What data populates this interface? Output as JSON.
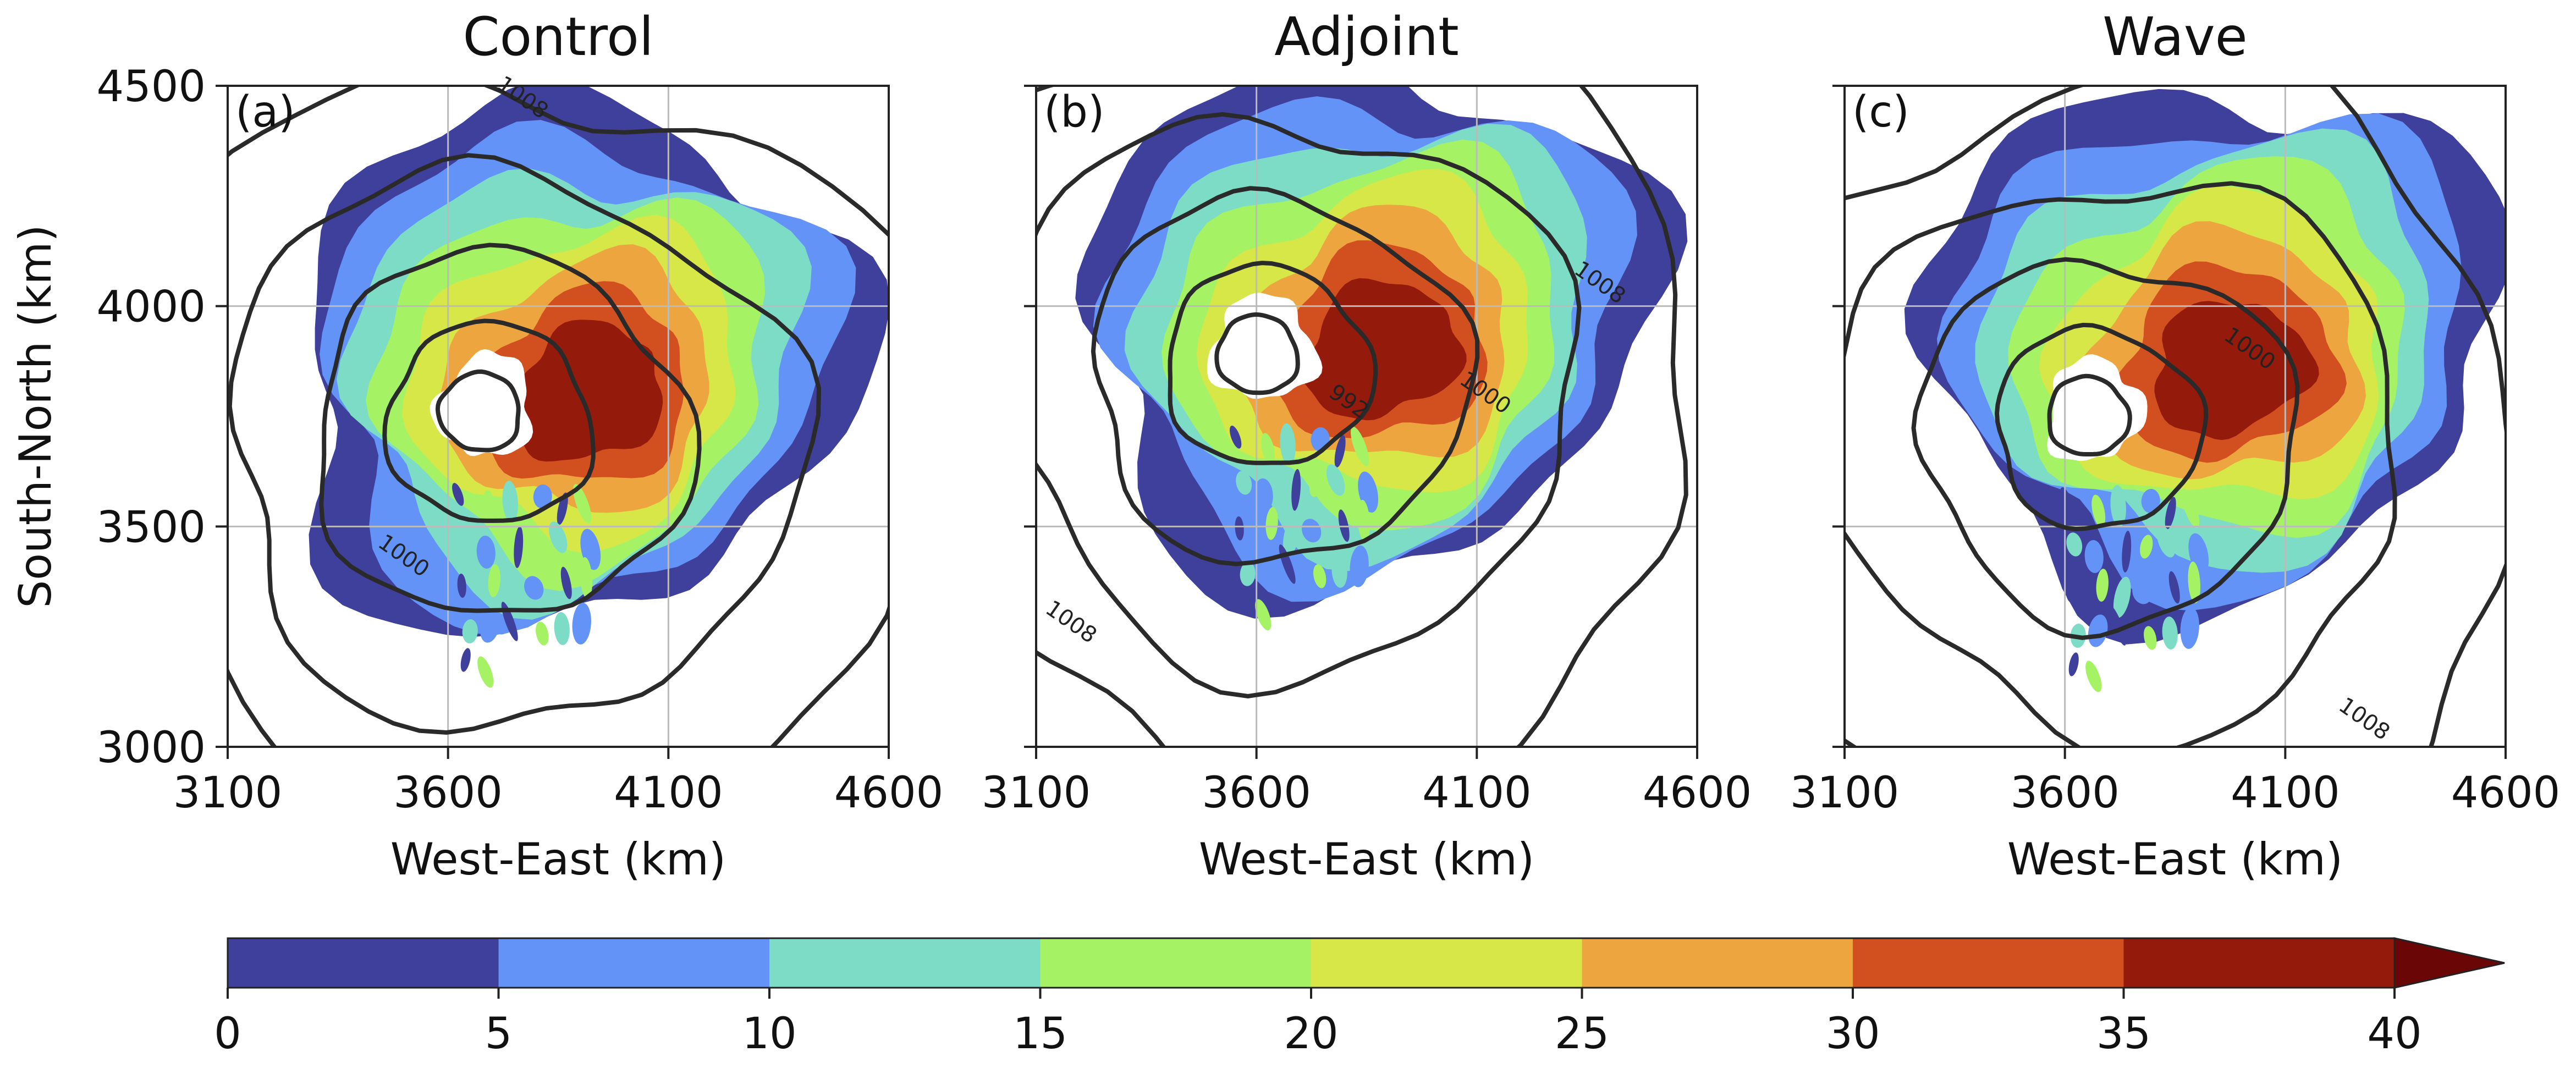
{
  "chart_data": [
    {
      "type": "contour",
      "title": "Control",
      "panel_label": "(a)",
      "xlabel": "West-East (km)",
      "ylabel": "South-North (km)",
      "xlim": [
        3100,
        4600
      ],
      "ylim": [
        3000,
        4500
      ],
      "xticks": [
        "3100",
        "3600",
        "4100",
        "4600"
      ],
      "yticks": [
        "3000",
        "3500",
        "4000",
        "4500"
      ],
      "grid": true,
      "pressure_contours": [
        {
          "level": "1000",
          "label_at": [
            3490,
            3420
          ]
        },
        {
          "level": "1008",
          "label_at": [
            3760,
            4460
          ]
        }
      ],
      "storm_center": [
        3660,
        3760
      ],
      "max_shading_region": [
        3920,
        3790
      ]
    },
    {
      "type": "contour",
      "title": "Adjoint",
      "panel_label": "(b)",
      "xlabel": "West-East (km)",
      "ylabel": "",
      "xlim": [
        3100,
        4600
      ],
      "ylim": [
        3000,
        4500
      ],
      "xticks": [
        "3100",
        "3600",
        "4100",
        "4600"
      ],
      "yticks": [],
      "grid": true,
      "pressure_contours": [
        {
          "level": "992",
          "label_at": [
            3800,
            3770
          ]
        },
        {
          "level": "1000",
          "label_at": [
            4110,
            3790
          ]
        },
        {
          "level": "1008",
          "label_at": [
            4370,
            4040
          ]
        },
        {
          "level": "1008",
          "label_at": [
            3170,
            3270
          ]
        }
      ],
      "storm_center": [
        3590,
        3890
      ],
      "max_shading_region": [
        3890,
        3890
      ]
    },
    {
      "type": "contour",
      "title": "Wave",
      "panel_label": "(c)",
      "xlabel": "West-East (km)",
      "ylabel": "",
      "xlim": [
        3100,
        4600
      ],
      "ylim": [
        3000,
        4500
      ],
      "xticks": [
        "3100",
        "3600",
        "4100",
        "4600"
      ],
      "yticks": [],
      "grid": true,
      "pressure_contours": [
        {
          "level": "1000",
          "label_at": [
            4010,
            3890
          ]
        },
        {
          "level": "1008",
          "label_at": [
            4270,
            3050
          ]
        }
      ],
      "storm_center": [
        3640,
        3750
      ],
      "max_shading_region": [
        3980,
        3850
      ]
    }
  ],
  "colorbar": {
    "ticks": [
      "0",
      "5",
      "10",
      "15",
      "20",
      "25",
      "30",
      "35",
      "40"
    ],
    "colors": [
      "#3f3f9c",
      "#6393f7",
      "#7ddcc5",
      "#a5f265",
      "#d7e748",
      "#eda53f",
      "#d24f1f",
      "#941a0b"
    ],
    "extend_color": "#6a0606",
    "extend": "max"
  },
  "colors": {
    "contour_line": "#2a2a2a",
    "grid": "#bbbbbb"
  }
}
